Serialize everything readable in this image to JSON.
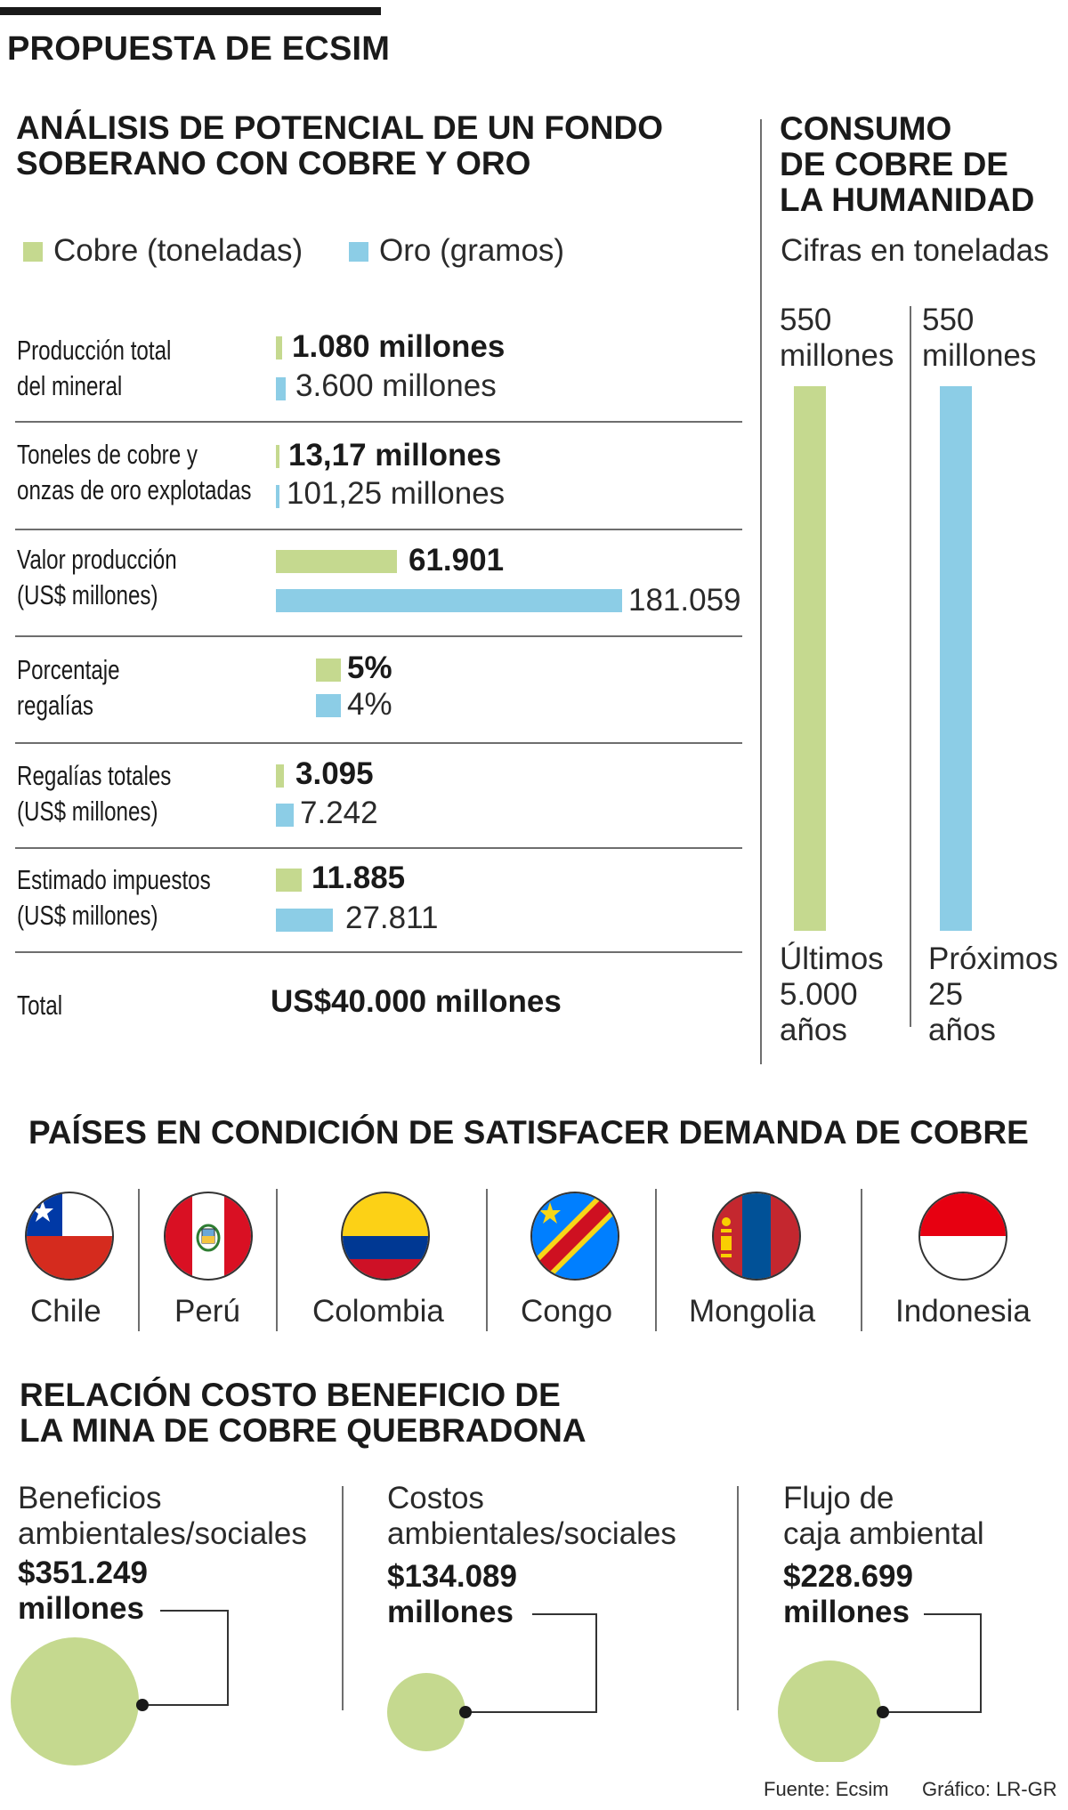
{
  "page": {
    "header": "PROPUESTA DE ECSIM"
  },
  "colors": {
    "copper": "#c5d98f",
    "gold": "#8ccde6",
    "ink": "#1a1a1a",
    "rule": "#6e6e6e"
  },
  "analysis": {
    "title_line1": "ANÁLISIS DE POTENCIAL DE UN FONDO",
    "title_line2": "SOBERANO CON COBRE Y ORO",
    "legend": {
      "copper": "Cobre (toneladas)",
      "gold": "Oro (gramos)"
    },
    "rows": [
      {
        "label1": "Producción total",
        "label2": "del mineral",
        "copper_text": "1.080 millones",
        "gold_text": "3.600 millones"
      },
      {
        "label1": "Toneles de cobre y",
        "label2": "onzas de oro explotadas",
        "copper_text": "13,17 millones",
        "gold_text": "101,25 millones"
      },
      {
        "label1": "Valor producción",
        "label2": "(US$ millones)",
        "copper_text": "61.901",
        "gold_text": "181.059"
      },
      {
        "label1": "Porcentaje",
        "label2": "regalías",
        "copper_text": "5%",
        "gold_text": "4%"
      },
      {
        "label1": "Regalías totales",
        "label2": "(US$ millones)",
        "copper_text": "3.095",
        "gold_text": "7.242"
      },
      {
        "label1": "Estimado impuestos",
        "label2": "(US$ millones)",
        "copper_text": "11.885",
        "gold_text": "27.811"
      }
    ],
    "total_label": "Total",
    "total_value": "US$40.000 millones"
  },
  "consumption": {
    "title_line1": "CONSUMO",
    "title_line2": "DE COBRE DE",
    "title_line3": "LA HUMANIDAD",
    "subtitle": "Cifras en toneladas",
    "bars": [
      {
        "value_line1": "550",
        "value_line2": "millones",
        "period_line1": "Últimos",
        "period_line2": "5.000",
        "period_line3": "años"
      },
      {
        "value_line1": "550",
        "value_line2": "millones",
        "period_line1": "Próximos",
        "period_line2": "25",
        "period_line3": "años"
      }
    ]
  },
  "countries": {
    "title": "PAÍSES EN CONDICIÓN DE SATISFACER DEMANDA DE COBRE",
    "items": [
      {
        "name": "Chile",
        "flag": "chile-flag-icon"
      },
      {
        "name": "Perú",
        "flag": "peru-flag-icon"
      },
      {
        "name": "Colombia",
        "flag": "colombia-flag-icon"
      },
      {
        "name": "Congo",
        "flag": "congo-flag-icon"
      },
      {
        "name": "Mongolia",
        "flag": "mongolia-flag-icon"
      },
      {
        "name": "Indonesia",
        "flag": "indonesia-flag-icon"
      }
    ]
  },
  "cost_benefit": {
    "title_line1": "RELACIÓN COSTO BENEFICIO DE",
    "title_line2": "LA MINA DE COBRE QUEBRADONA",
    "items": [
      {
        "label1": "Beneficios",
        "label2": "ambientales/sociales",
        "value1": "$351.249",
        "value2": "millones"
      },
      {
        "label1": "Costos",
        "label2": "ambientales/sociales",
        "value1": "$134.089",
        "value2": "millones"
      },
      {
        "label1": "Flujo de",
        "label2": "caja ambiental",
        "value1": "$228.699",
        "value2": "millones"
      }
    ]
  },
  "footer": {
    "source": "Fuente: Ecsim",
    "credit": "Gráfico: LR-GR"
  },
  "chart_data": [
    {
      "type": "bar",
      "title": "Valor producción (US$ millones)",
      "categories": [
        "Cobre",
        "Oro"
      ],
      "values": [
        61901,
        181059
      ]
    },
    {
      "type": "bar",
      "title": "Porcentaje regalías",
      "categories": [
        "Cobre",
        "Oro"
      ],
      "values": [
        5,
        4
      ],
      "unit": "%"
    },
    {
      "type": "bar",
      "title": "Regalías totales (US$ millones)",
      "categories": [
        "Cobre",
        "Oro"
      ],
      "values": [
        3095,
        7242
      ]
    },
    {
      "type": "bar",
      "title": "Estimado impuestos (US$ millones)",
      "categories": [
        "Cobre",
        "Oro"
      ],
      "values": [
        11885,
        27811
      ]
    },
    {
      "type": "bar",
      "title": "Consumo de cobre de la humanidad (toneladas)",
      "categories": [
        "Últimos 5.000 años",
        "Próximos 25 años"
      ],
      "values": [
        550000000,
        550000000
      ]
    },
    {
      "type": "bubble",
      "title": "Relación costo beneficio de la mina de cobre Quebradona ($ millones)",
      "categories": [
        "Beneficios ambientales/sociales",
        "Costos ambientales/sociales",
        "Flujo de caja ambiental"
      ],
      "values": [
        351249,
        134089,
        228699
      ]
    }
  ]
}
